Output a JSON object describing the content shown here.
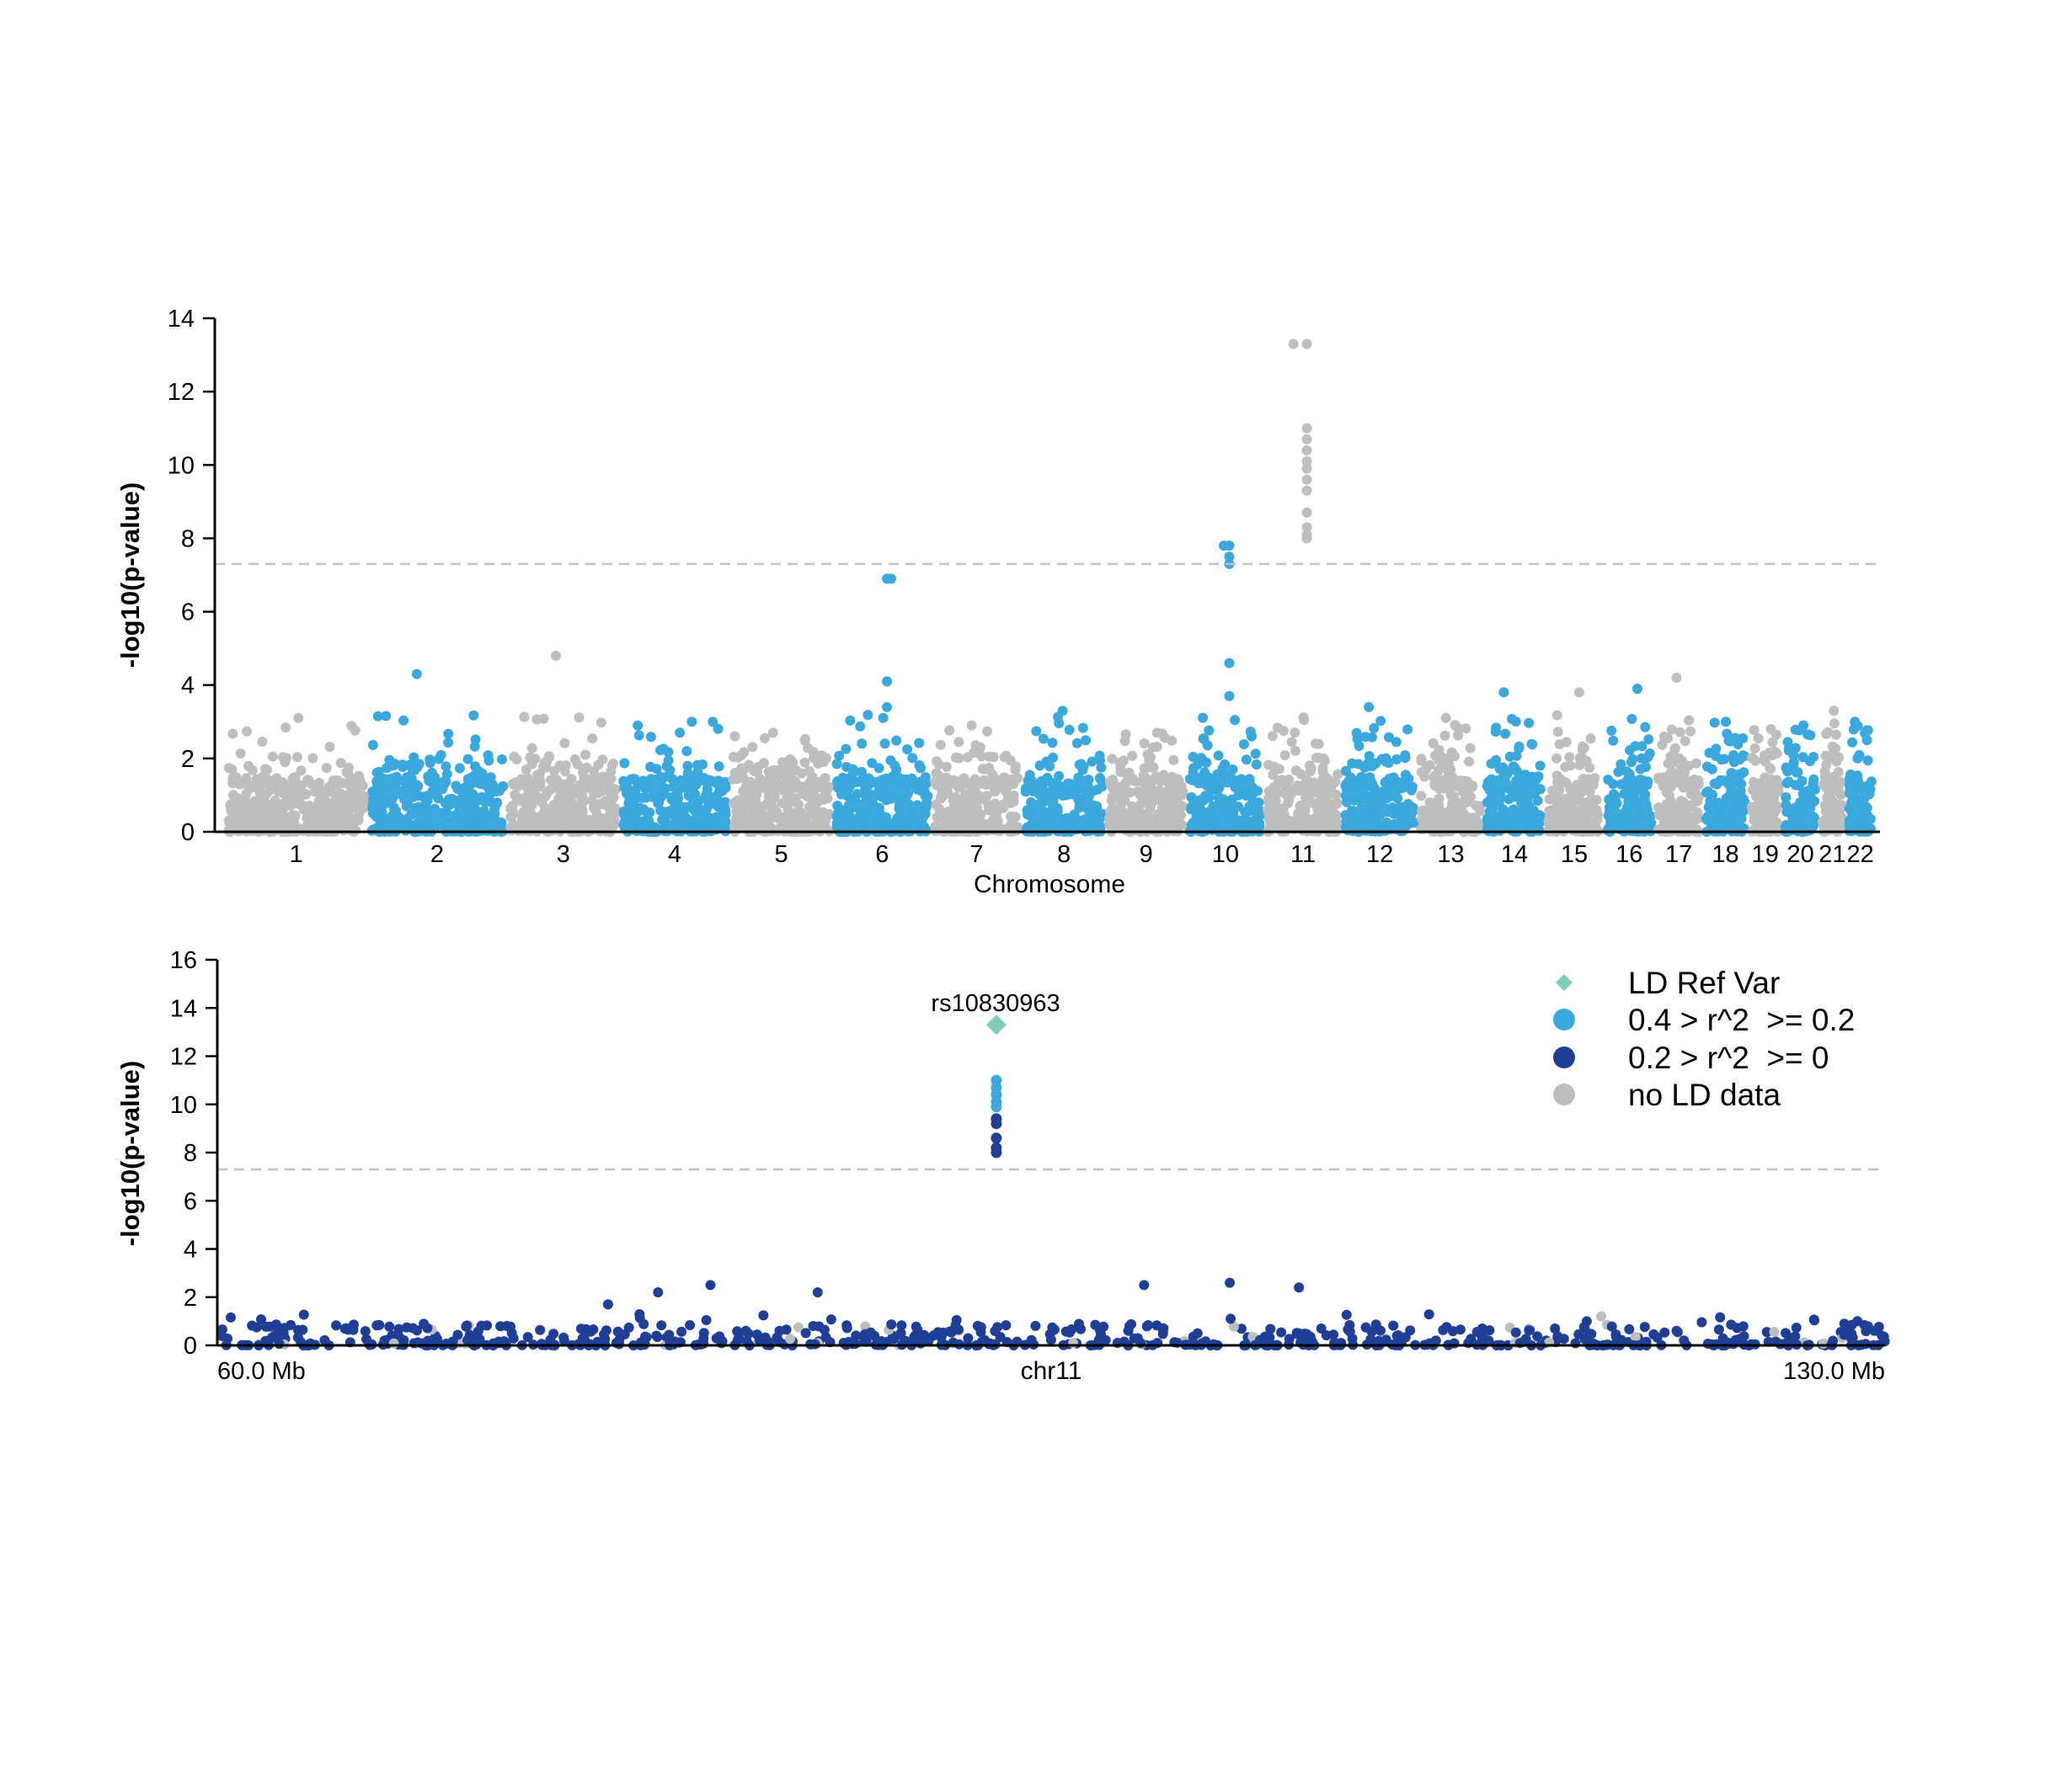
{
  "colors": {
    "grey": "#bebebe",
    "light_blue": "#3aa8dc",
    "dark_blue": "#1f3e96",
    "ref": "#7fcdb8",
    "threshold": "#c2c2c2"
  },
  "chart_data": [
    {
      "type": "scatter",
      "subtype": "manhattan",
      "xlabel": "Chromosome",
      "ylabel": "-log10(p-value)",
      "ylim": [
        0,
        14
      ],
      "yticks": [
        0,
        2,
        4,
        6,
        8,
        10,
        12,
        14
      ],
      "threshold": 7.3,
      "categories": [
        "1",
        "2",
        "3",
        "4",
        "5",
        "6",
        "7",
        "8",
        "9",
        "10",
        "11",
        "12",
        "13",
        "14",
        "15",
        "16",
        "17",
        "18",
        "19",
        "20",
        "21",
        "22"
      ],
      "chromosome_colors": [
        "grey",
        "light_blue",
        "grey",
        "light_blue",
        "grey",
        "light_blue",
        "grey",
        "light_blue",
        "grey",
        "light_blue",
        "grey",
        "light_blue",
        "grey",
        "light_blue",
        "grey",
        "light_blue",
        "grey",
        "light_blue",
        "grey",
        "light_blue",
        "grey",
        "light_blue"
      ],
      "chromosome_max": [
        3.1,
        4.3,
        4.8,
        3.0,
        2.7,
        6.9,
        2.9,
        3.3,
        2.7,
        7.8,
        13.3,
        3.4,
        3.1,
        3.8,
        3.8,
        3.9,
        4.2,
        3.0,
        2.8,
        2.9,
        3.3,
        3.0
      ],
      "peaks": [
        {
          "chromosome": "6",
          "y": [
            6.9,
            4.1,
            3.4
          ]
        },
        {
          "chromosome": "10",
          "y": [
            7.8,
            7.5,
            7.3,
            4.6,
            3.7
          ]
        },
        {
          "chromosome": "11",
          "y": [
            13.3,
            11.0,
            10.7,
            10.4,
            10.1,
            9.9,
            9.6,
            9.3,
            8.7,
            8.3,
            8.1,
            8.0
          ]
        }
      ]
    },
    {
      "type": "scatter",
      "subtype": "regional",
      "xlabel": "chr11",
      "ylabel": "-log10(p-value)",
      "ylim": [
        0,
        16
      ],
      "yticks": [
        0,
        2,
        4,
        6,
        8,
        10,
        12,
        14,
        16
      ],
      "xlim_mb": [
        60.0,
        130.0
      ],
      "x_tick_labels": [
        "60.0 Mb",
        "130.0 Mb"
      ],
      "threshold": 7.3,
      "ref_variant": {
        "label": "rs10830963",
        "x_mb": 92.7,
        "y": 13.3
      },
      "peak_points": [
        {
          "y": 11.0,
          "ld": "light_blue"
        },
        {
          "y": 10.7,
          "ld": "light_blue"
        },
        {
          "y": 10.4,
          "ld": "light_blue"
        },
        {
          "y": 10.1,
          "ld": "light_blue"
        },
        {
          "y": 9.9,
          "ld": "light_blue"
        },
        {
          "y": 9.4,
          "ld": "dark_blue"
        },
        {
          "y": 9.2,
          "ld": "dark_blue"
        },
        {
          "y": 8.6,
          "ld": "dark_blue"
        },
        {
          "y": 8.2,
          "ld": "dark_blue"
        },
        {
          "y": 8.0,
          "ld": "dark_blue"
        }
      ],
      "notable_points": [
        {
          "x_mb": 80.7,
          "y": 2.5
        },
        {
          "x_mb": 78.5,
          "y": 2.2
        },
        {
          "x_mb": 85.2,
          "y": 2.2
        },
        {
          "x_mb": 76.4,
          "y": 1.7
        },
        {
          "x_mb": 98.9,
          "y": 2.5
        },
        {
          "x_mb": 102.5,
          "y": 2.6
        },
        {
          "x_mb": 105.4,
          "y": 2.4
        }
      ],
      "legend": {
        "position": "top-right",
        "entries": [
          {
            "label": "LD Ref Var",
            "shape": "diamond",
            "color": "ref"
          },
          {
            "label": "0.4 > r^2  >= 0.2",
            "shape": "circle",
            "color": "light_blue"
          },
          {
            "label": "0.2 > r^2  >= 0",
            "shape": "circle",
            "color": "dark_blue"
          },
          {
            "label": "no LD data",
            "shape": "circle",
            "color": "grey"
          }
        ]
      }
    }
  ]
}
